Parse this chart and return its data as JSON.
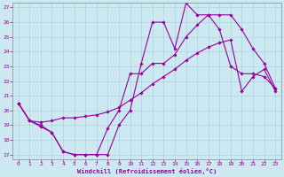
{
  "xlabel": "Windchill (Refroidissement éolien,°C)",
  "bg_color": "#cce8f0",
  "line_color": "#990099",
  "grid_color": "#aaccdd",
  "spine_color": "#888899",
  "xlim": [
    -0.5,
    23.5
  ],
  "ylim": [
    16.7,
    27.3
  ],
  "yticks": [
    17,
    18,
    19,
    20,
    21,
    22,
    23,
    24,
    25,
    26,
    27
  ],
  "xticks": [
    0,
    1,
    2,
    3,
    4,
    5,
    6,
    7,
    8,
    9,
    10,
    11,
    12,
    13,
    14,
    15,
    16,
    17,
    18,
    19,
    20,
    21,
    22,
    23
  ],
  "line1_x": [
    0,
    1,
    2,
    3,
    4,
    5,
    6,
    7,
    8,
    9,
    10,
    11,
    12,
    13,
    14,
    15,
    16,
    17,
    18,
    19,
    20,
    21,
    22,
    23
  ],
  "line1_y": [
    20.5,
    19.3,
    18.9,
    18.5,
    17.2,
    17.0,
    17.0,
    17.0,
    17.0,
    19.0,
    20.0,
    23.2,
    26.0,
    26.0,
    24.2,
    27.3,
    26.5,
    26.5,
    25.5,
    23.0,
    22.5,
    22.5,
    22.3,
    21.5
  ],
  "line2_x": [
    0,
    1,
    2,
    3,
    4,
    5,
    6,
    7,
    8,
    9,
    10,
    11,
    12,
    13,
    14,
    15,
    16,
    17,
    18,
    19,
    20,
    21,
    22,
    23
  ],
  "line2_y": [
    20.5,
    19.3,
    19.2,
    19.3,
    19.5,
    19.5,
    19.6,
    19.7,
    19.9,
    20.2,
    20.7,
    21.2,
    21.8,
    22.3,
    22.8,
    23.4,
    23.9,
    24.3,
    24.6,
    24.8,
    21.3,
    22.3,
    22.8,
    21.3
  ],
  "line3_x": [
    0,
    1,
    2,
    3,
    4,
    5,
    6,
    7,
    8,
    9,
    10,
    11,
    12,
    13,
    14,
    15,
    16,
    17,
    18,
    19,
    20,
    21,
    22,
    23
  ],
  "line3_y": [
    20.5,
    19.3,
    19.0,
    18.5,
    17.2,
    17.0,
    17.0,
    17.0,
    18.8,
    20.0,
    22.5,
    22.5,
    23.2,
    23.2,
    23.8,
    25.0,
    25.8,
    26.5,
    26.5,
    26.5,
    25.5,
    24.2,
    23.2,
    21.5
  ]
}
